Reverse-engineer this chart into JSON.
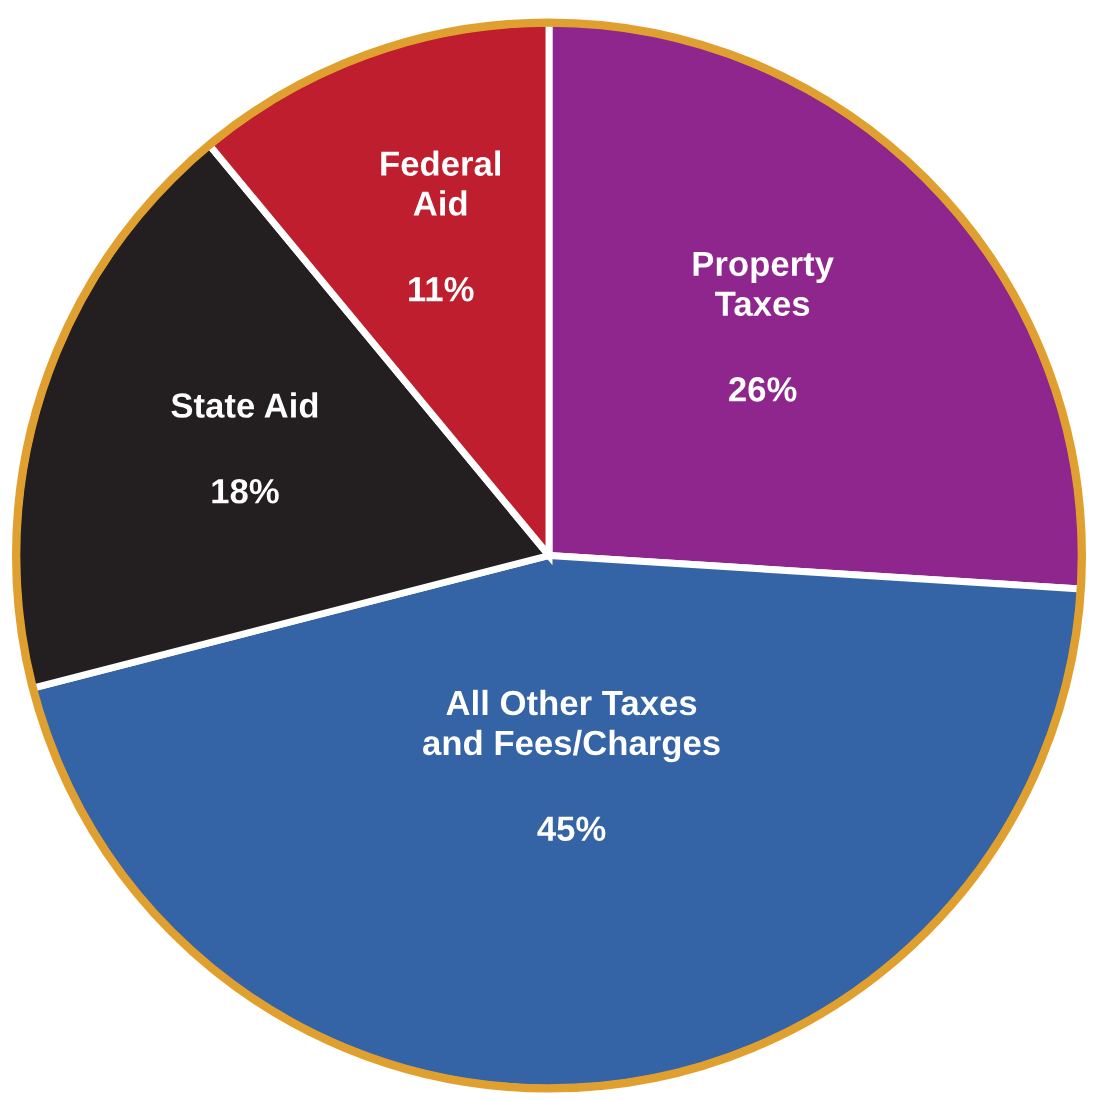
{
  "chart_data": {
    "type": "pie",
    "categories": [
      "Property\nTaxes",
      "All Other Taxes\nand Fees/Charges",
      "State Aid",
      "Federal\nAid"
    ],
    "values": [
      26,
      45,
      18,
      11
    ],
    "colors": [
      "#8e268e",
      "#3564a6",
      "#231f20",
      "#be1e2d"
    ],
    "value_labels": [
      "26%",
      "45%",
      "18%",
      "11%"
    ],
    "legend": false
  }
}
